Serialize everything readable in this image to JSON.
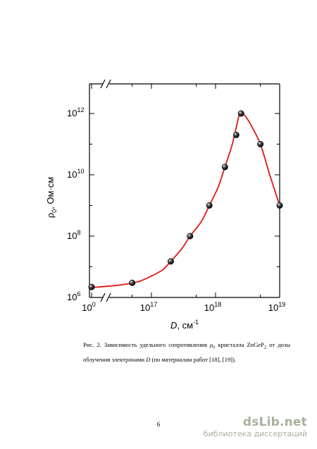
{
  "chart_data": {
    "type": "line",
    "y_axis_label": "ρ",
    "y_axis_label_sub": "0",
    "y_axis_label_unit": ", Ом·см",
    "x_axis_label": "D",
    "x_axis_label_unit": ", см",
    "x_axis_label_exp": "-1",
    "x_scale": "log, broken between 10^0 and 10^16",
    "y_scale": "log",
    "x_ticks": [
      {
        "base": "10",
        "exp": "0",
        "pos": "break-start"
      },
      {
        "base": "10",
        "exp": "17",
        "log": 17
      },
      {
        "base": "10",
        "exp": "18",
        "log": 18
      },
      {
        "base": "10",
        "exp": "19",
        "log": 19
      }
    ],
    "y_ticks": [
      {
        "base": "10",
        "exp": "6",
        "log": 6
      },
      {
        "base": "10",
        "exp": "8",
        "log": 8
      },
      {
        "base": "10",
        "exp": "10",
        "log": 10
      },
      {
        "base": "10",
        "exp": "12",
        "log": 12
      }
    ],
    "xlim_log": [
      16.0,
      19.0
    ],
    "ylim_log": [
      6.0,
      13.0
    ],
    "series": [
      {
        "kind": "points",
        "color": "#111111",
        "points": [
          {
            "x": 1,
            "y": 2200000.0
          },
          {
            "x": 5e+16,
            "y": 3000000.0
          },
          {
            "x": 2e+17,
            "y": 15000000.0
          },
          {
            "x": 4e+17,
            "y": 100000000.0
          },
          {
            "x": 8e+17,
            "y": 1000000000.0
          },
          {
            "x": 1.4e+18,
            "y": 18000000000.0
          },
          {
            "x": 2.1e+18,
            "y": 200000000000.0
          },
          {
            "x": 2.5e+18,
            "y": 1000000000000.0
          },
          {
            "x": 5e+18,
            "y": 100000000000.0
          },
          {
            "x": 1e+19,
            "y": 1000000000.0
          }
        ]
      },
      {
        "kind": "fit-curve",
        "color": "#e01818",
        "points": [
          {
            "x": 1,
            "y": 2100000.0
          },
          {
            "x": 3e+16,
            "y": 2500000.0
          },
          {
            "x": 6e+16,
            "y": 3200000.0
          },
          {
            "x": 1e+17,
            "y": 5000000.0
          },
          {
            "x": 1.5e+17,
            "y": 8000000.0
          },
          {
            "x": 2e+17,
            "y": 15000000.0
          },
          {
            "x": 3e+17,
            "y": 40000000.0
          },
          {
            "x": 4e+17,
            "y": 100000000.0
          },
          {
            "x": 6e+17,
            "y": 300000000.0
          },
          {
            "x": 8e+17,
            "y": 1000000000.0
          },
          {
            "x": 1.1e+18,
            "y": 4000000000.0
          },
          {
            "x": 1.4e+18,
            "y": 18000000000.0
          },
          {
            "x": 1.8e+18,
            "y": 90000000000.0
          },
          {
            "x": 2.1e+18,
            "y": 350000000000.0
          },
          {
            "x": 2.4e+18,
            "y": 1000000000000.0
          },
          {
            "x": 2.8e+18,
            "y": 900000000000.0
          },
          {
            "x": 3.5e+18,
            "y": 450000000000.0
          },
          {
            "x": 5e+18,
            "y": 100000000000.0
          },
          {
            "x": 7e+18,
            "y": 10000000000.0
          },
          {
            "x": 1e+19,
            "y": 1000000000.0
          }
        ]
      }
    ]
  },
  "caption": {
    "prefix": "Рис. 2. Зависимость удельного сопротивления ",
    "rho": "ρ",
    "rho_sub": "0",
    "middle": " кристалла ZnGeP",
    "formula_sub": "2",
    "after_formula": " от дозы облучения электронами ",
    "d_symbol": "D",
    "suffix": " (по материалам работ [18], [19])."
  },
  "page_number": "6",
  "watermark": {
    "logo": "dsLib.net",
    "subtitle": "библиотека диссертаций"
  }
}
